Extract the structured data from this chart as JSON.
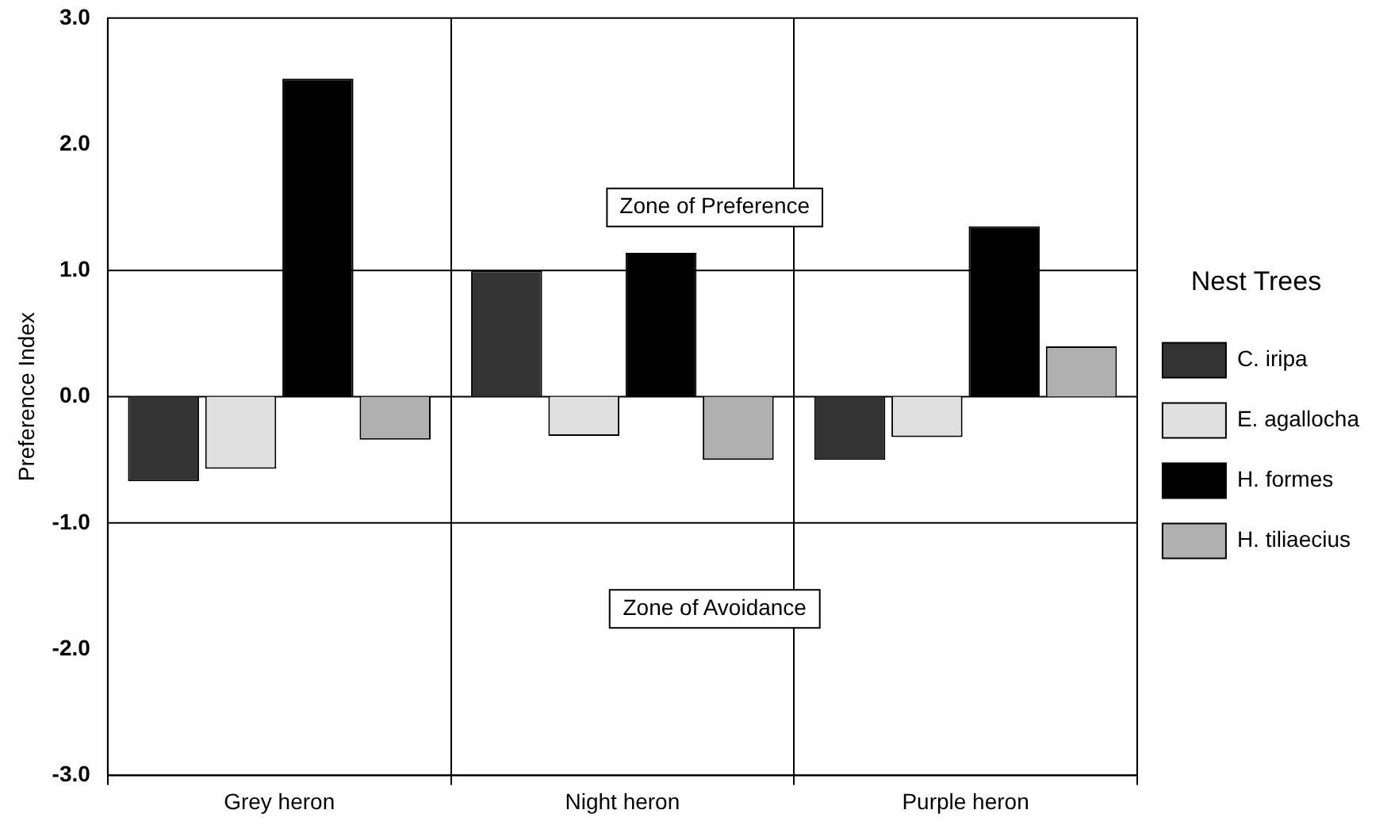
{
  "chart_data": {
    "type": "bar",
    "ylabel": "Preference Index",
    "legend_title": "Nest Trees",
    "legend": "right",
    "grid": "x",
    "categories": [
      "Grey heron",
      "Night heron",
      "Purple heron"
    ],
    "series": [
      {
        "name": "C. iripa",
        "color": "#333333",
        "values": [
          -0.67,
          1.0,
          -0.5
        ]
      },
      {
        "name": "E. agallocha",
        "color": "#e0e0e0",
        "values": [
          -0.57,
          -0.31,
          -0.32
        ]
      },
      {
        "name": "H. formes",
        "color": "#000000",
        "values": [
          2.52,
          1.14,
          1.35
        ]
      },
      {
        "name": "H. tiliaecius",
        "color": "#b0b0b0",
        "values": [
          -0.34,
          -0.5,
          0.4
        ]
      }
    ],
    "ylim": [
      -3,
      3
    ],
    "yticks": [
      {
        "value": -3,
        "label": "-3.0"
      },
      {
        "value": -2,
        "label": "-2.0"
      },
      {
        "value": -1,
        "label": "-1.0"
      },
      {
        "value": 0,
        "label": "0.0"
      },
      {
        "value": 1,
        "label": "1.0"
      },
      {
        "value": 2,
        "label": "2.0"
      },
      {
        "value": 3,
        "label": "3.0"
      }
    ],
    "ref_lines": [
      {
        "axis": "y",
        "value": 1
      },
      {
        "axis": "y",
        "value": 0
      },
      {
        "axis": "y",
        "value": -1
      }
    ],
    "annotations": [
      "Zone of Preference",
      "Zone of Avoidance"
    ]
  }
}
